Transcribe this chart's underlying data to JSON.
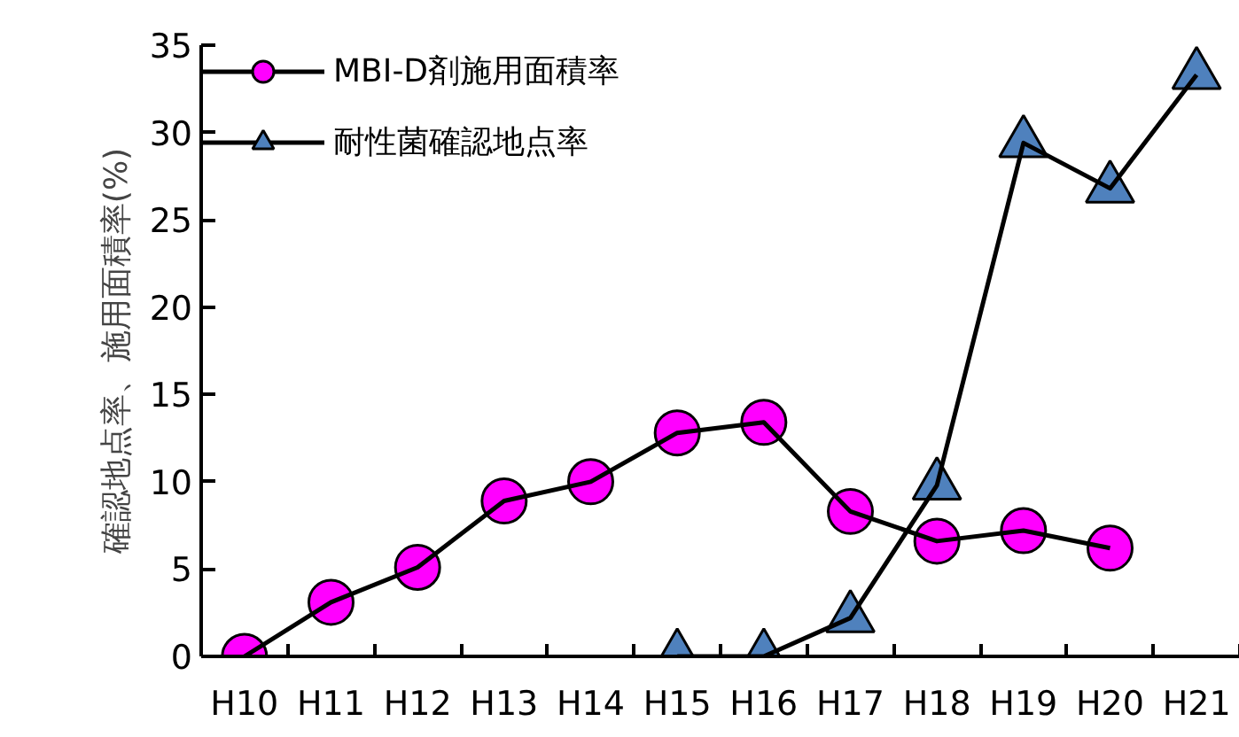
{
  "chart_data": {
    "type": "line",
    "ylabel": "確認地点率、施用面積率(%)",
    "categories": [
      "H10",
      "H11",
      "H12",
      "H13",
      "H14",
      "H15",
      "H16",
      "H17",
      "H18",
      "H19",
      "H20",
      "H21"
    ],
    "series": [
      {
        "name": "MBI-D剤施用面積率",
        "color": "#ff00ff",
        "marker": "circle",
        "values": [
          0,
          3.1,
          5.1,
          8.9,
          10.0,
          12.8,
          13.4,
          8.3,
          6.6,
          7.2,
          6.2,
          null
        ]
      },
      {
        "name": "耐性菌確認地点率",
        "color": "#4f81bd",
        "marker": "triangle",
        "values": [
          null,
          null,
          null,
          null,
          null,
          0,
          0,
          2.2,
          9.8,
          29.4,
          26.8,
          33.3
        ]
      }
    ],
    "ylim": [
      0,
      35
    ],
    "yticks": [
      0,
      5,
      10,
      15,
      20,
      25,
      30,
      35
    ],
    "grid": false,
    "legend": "top left",
    "line_style": "solid"
  }
}
